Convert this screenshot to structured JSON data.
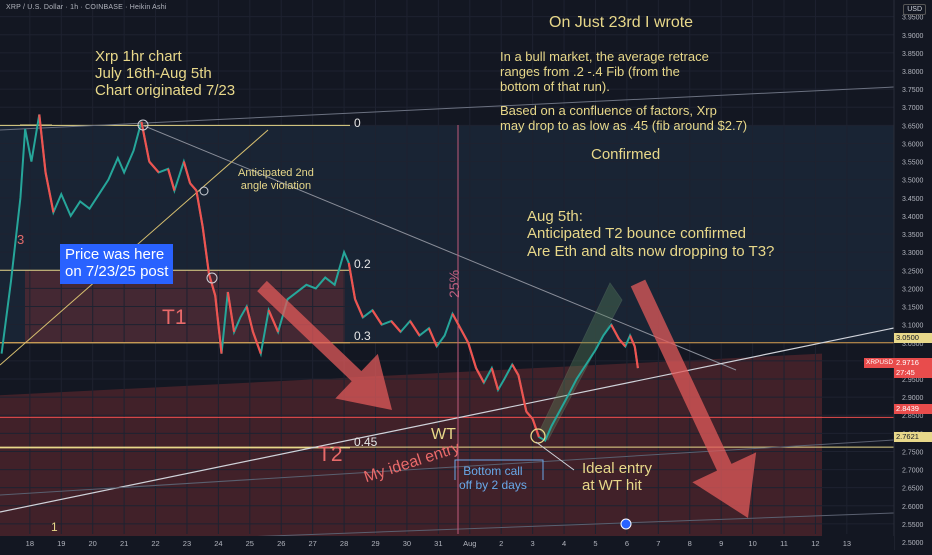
{
  "header": {
    "title": "XRP / U.S. Dollar · 1h · COINBASE · Heikin Ashi",
    "currency": "USD"
  },
  "colors": {
    "background": "#131722",
    "candle_up": "#26a69a",
    "candle_down": "#ef5350",
    "annotation_yellow": "#e8d88a",
    "zone_red": "#7a2e33",
    "arrow_red": "#e05a5a",
    "price_box": "#2962ff",
    "channel_green": "#5b8a5e"
  },
  "annotations": {
    "title_line1": "Xrp 1hr chart",
    "title_line2": "July 16th-Aug 5th",
    "title_line3": "Chart originated 7/23",
    "wrote_heading": "On Just 23rd I wrote",
    "wrote_body": "In a bull market, the average retrace\nranges from .2 -.4 Fib (from the\nbottom of that run).",
    "wrote_body2": "Based on a confluence of factors, Xrp\nmay drop to as low as .45 (fib around $2.7)",
    "confirmed": "Confirmed",
    "aug5": "Aug 5th:\nAnticipated T2 bounce confirmed\nAre Eth and alts now dropping to T3?",
    "angle": "Anticipated 2nd\nangle violation",
    "price_box": "Price was here\non 7/23/25 post",
    "t1": "T1",
    "t2": "T2",
    "pct": "25%",
    "wt": "WT",
    "ideal_entry": "My ideal entry",
    "bottom_call": "Bottom call\noff by 2 days",
    "ideal_wt": "Ideal entry\nat WT hit",
    "fib0": "0",
    "fib02": "0.2",
    "fib03": "0.3",
    "fib045": "0.45",
    "mark3": "3",
    "mark1": "1"
  },
  "price_tags": {
    "symbol": "XRPUSD",
    "current": "2.9716",
    "countdown": "27:45",
    "level_a": "3.0500",
    "level_b": "2.8439",
    "level_c": "2.7621"
  },
  "chart_data": {
    "type": "candlestick",
    "title": "XRP / U.S. Dollar · 1h · COINBASE · Heikin Ashi",
    "y_axis_labels": [
      "3.9500",
      "3.9000",
      "3.8500",
      "3.8000",
      "3.7500",
      "3.7000",
      "3.6500",
      "3.6000",
      "3.5500",
      "3.5000",
      "3.4500",
      "3.4000",
      "3.3500",
      "3.3000",
      "3.2500",
      "3.2000",
      "3.1500",
      "3.1000",
      "3.0500",
      "3.0000",
      "2.9500",
      "2.9000",
      "2.8500",
      "2.8000",
      "2.7500",
      "2.7000",
      "2.6500",
      "2.6000",
      "2.5500",
      "2.5000"
    ],
    "y_ticks": [
      3.95,
      3.9,
      3.85,
      3.8,
      3.75,
      3.7,
      3.65,
      3.6,
      3.55,
      3.5,
      3.45,
      3.4,
      3.35,
      3.3,
      3.25,
      3.2,
      3.15,
      3.1,
      3.05,
      3.0,
      2.95,
      2.9,
      2.85,
      2.8,
      2.75,
      2.7,
      2.65,
      2.6,
      2.55,
      2.5
    ],
    "ylim": [
      2.478,
      3.996
    ],
    "x_tick_labels": [
      "18",
      "19",
      "20",
      "21",
      "22",
      "23",
      "24",
      "25",
      "26",
      "27",
      "28",
      "29",
      "30",
      "31",
      "Aug",
      "2",
      "3",
      "4",
      "5",
      "6",
      "7",
      "8",
      "9",
      "10",
      "11",
      "12",
      "13"
    ],
    "x_ticks_day": [
      0,
      1,
      2,
      3,
      4,
      5,
      6,
      7,
      8,
      9,
      10,
      11,
      12,
      13,
      14,
      15,
      16,
      17,
      18,
      19,
      20,
      21,
      22,
      23,
      24,
      25,
      26
    ],
    "xlim_day": [
      -0.95,
      27.5
    ],
    "fib_levels": [
      {
        "label": "0",
        "price": 3.65
      },
      {
        "label": "0.2",
        "price": 3.25
      },
      {
        "label": "0.3",
        "price": 3.05
      },
      {
        "label": "0.45",
        "price": 2.76
      }
    ],
    "price_levels": [
      3.05,
      2.9716,
      2.8439,
      2.7621
    ],
    "price_path": [
      [
        -0.9,
        3.02
      ],
      [
        -0.6,
        3.22
      ],
      [
        -0.3,
        3.45
      ],
      [
        -0.15,
        3.64
      ],
      [
        0.05,
        3.55
      ],
      [
        0.3,
        3.68
      ],
      [
        0.5,
        3.52
      ],
      [
        0.75,
        3.41
      ],
      [
        1.0,
        3.46
      ],
      [
        1.3,
        3.4
      ],
      [
        1.6,
        3.44
      ],
      [
        1.9,
        3.42
      ],
      [
        2.2,
        3.46
      ],
      [
        2.5,
        3.5
      ],
      [
        2.8,
        3.56
      ],
      [
        3.0,
        3.52
      ],
      [
        3.3,
        3.58
      ],
      [
        3.55,
        3.66
      ],
      [
        3.8,
        3.55
      ],
      [
        4.1,
        3.52
      ],
      [
        4.4,
        3.53
      ],
      [
        4.6,
        3.47
      ],
      [
        4.9,
        3.55
      ],
      [
        5.1,
        3.49
      ],
      [
        5.3,
        3.47
      ],
      [
        5.5,
        3.37
      ],
      [
        5.7,
        3.24
      ],
      [
        5.9,
        3.18
      ],
      [
        6.1,
        3.02
      ],
      [
        6.3,
        3.19
      ],
      [
        6.5,
        3.08
      ],
      [
        6.7,
        3.12
      ],
      [
        6.9,
        3.15
      ],
      [
        7.1,
        3.08
      ],
      [
        7.35,
        3.02
      ],
      [
        7.6,
        3.14
      ],
      [
        7.9,
        3.08
      ],
      [
        8.2,
        3.17
      ],
      [
        8.5,
        3.19
      ],
      [
        8.8,
        3.21
      ],
      [
        9.1,
        3.2
      ],
      [
        9.4,
        3.23
      ],
      [
        9.7,
        3.21
      ],
      [
        10.0,
        3.3
      ],
      [
        10.15,
        3.27
      ],
      [
        10.35,
        3.17
      ],
      [
        10.6,
        3.12
      ],
      [
        10.9,
        3.14
      ],
      [
        11.2,
        3.1
      ],
      [
        11.5,
        3.11
      ],
      [
        11.8,
        3.08
      ],
      [
        12.1,
        3.11
      ],
      [
        12.4,
        3.07
      ],
      [
        12.7,
        3.09
      ],
      [
        12.95,
        3.04
      ],
      [
        13.2,
        3.07
      ],
      [
        13.45,
        3.13
      ],
      [
        13.7,
        3.09
      ],
      [
        13.95,
        3.05
      ],
      [
        14.2,
        2.98
      ],
      [
        14.45,
        2.94
      ],
      [
        14.7,
        2.98
      ],
      [
        14.9,
        2.92
      ],
      [
        15.1,
        2.95
      ],
      [
        15.35,
        2.99
      ],
      [
        15.55,
        2.96
      ],
      [
        15.8,
        2.86
      ],
      [
        16.0,
        2.84
      ],
      [
        16.2,
        2.79
      ],
      [
        16.4,
        2.78
      ],
      [
        16.6,
        2.82
      ],
      [
        16.85,
        2.86
      ],
      [
        17.1,
        2.9
      ],
      [
        17.4,
        2.95
      ],
      [
        17.7,
        2.99
      ],
      [
        18.0,
        3.03
      ],
      [
        18.25,
        3.07
      ],
      [
        18.5,
        3.1
      ],
      [
        18.75,
        3.06
      ],
      [
        18.95,
        3.04
      ],
      [
        19.1,
        3.07
      ],
      [
        19.25,
        3.04
      ],
      [
        19.35,
        2.98
      ]
    ],
    "red_candles_x": [
      0.5,
      0.75,
      3.8,
      4.1,
      4.6,
      5.1,
      5.3,
      5.5,
      5.7,
      5.9,
      6.1,
      6.5,
      7.1,
      7.35,
      7.9,
      10.35,
      10.6,
      11.2,
      11.8,
      12.4,
      12.95,
      13.7,
      13.95,
      14.2,
      14.45,
      14.9,
      15.55,
      15.8,
      16.0,
      16.2,
      18.75,
      18.95,
      19.25,
      19.35
    ]
  }
}
